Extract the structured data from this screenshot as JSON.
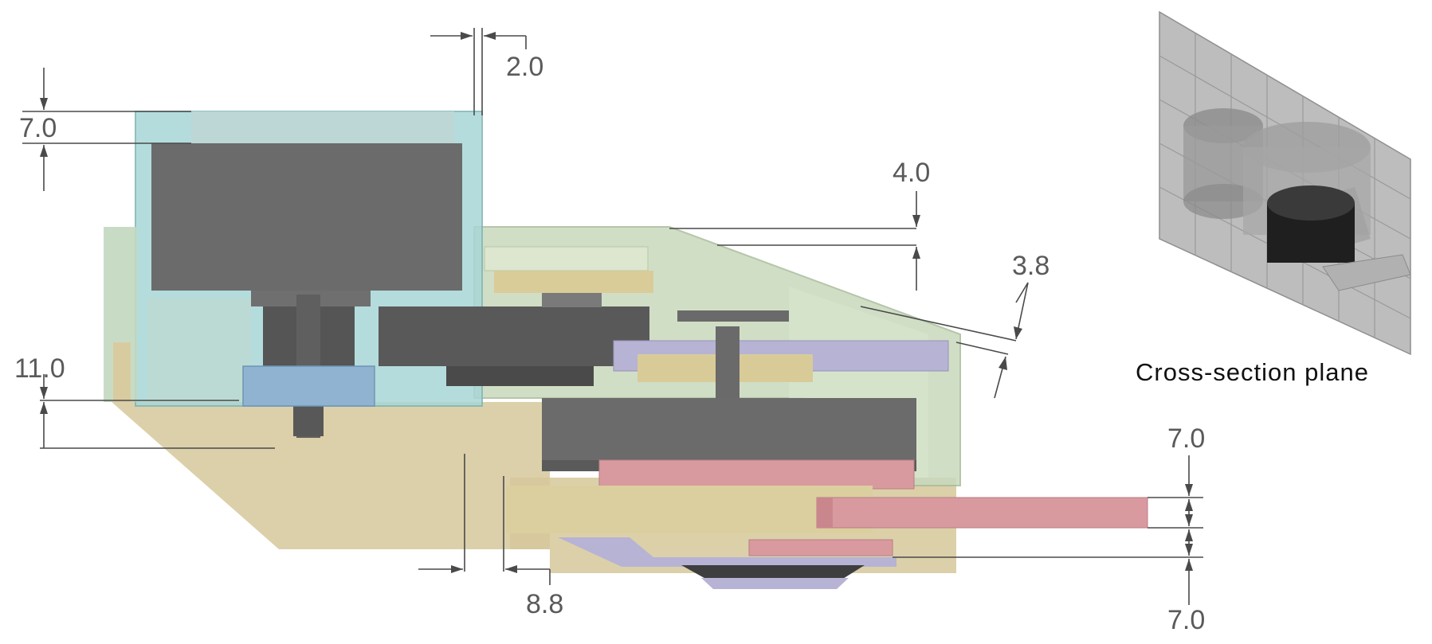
{
  "dimensions": {
    "top_gap": "2.0",
    "motor_top": "7.0",
    "gear_top": "4.0",
    "gear_slant": "3.8",
    "motor_bottom": "11.0",
    "output_gap": "8.8",
    "output_top": "7.0",
    "output_bottom": "7.0"
  },
  "inset": {
    "caption": "Cross-section plane"
  },
  "colors": {
    "motor_grey": "#6b6b6b",
    "housing_teal": "#a9d6d6",
    "housing_green": "#c9d9bd",
    "base_tan": "#d8cba0",
    "gear_lavender": "#b7b3d4",
    "output_pink": "#d89a9f",
    "spur_blue": "#8fb3d1"
  }
}
